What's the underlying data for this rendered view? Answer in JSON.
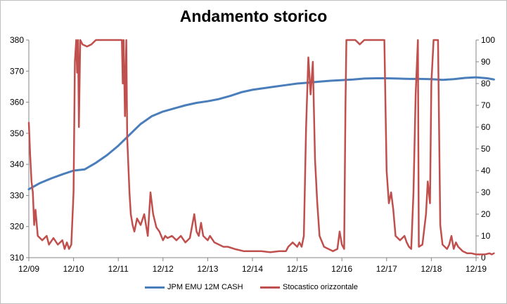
{
  "chart_data": {
    "type": "line",
    "title": "Andamento storico",
    "x_categories": [
      "12/09",
      "12/10",
      "12/11",
      "12/12",
      "12/13",
      "12/14",
      "12/15",
      "12/16",
      "12/17",
      "12/18",
      "12/19"
    ],
    "y_left": {
      "min": 310,
      "max": 380,
      "ticks": [
        310,
        320,
        330,
        340,
        350,
        360,
        370,
        380
      ]
    },
    "y_right": {
      "min": 0,
      "max": 100,
      "ticks": [
        0,
        10,
        20,
        30,
        40,
        50,
        60,
        70,
        80,
        90,
        100
      ]
    },
    "gridlines": false,
    "legend_position": "bottom",
    "series": [
      {
        "name": "JPM EMU 12M CASH",
        "axis": "left",
        "color": "#4a7ebb",
        "points": [
          [
            0.0,
            332.0
          ],
          [
            0.25,
            334.0
          ],
          [
            0.5,
            335.5
          ],
          [
            0.75,
            336.8
          ],
          [
            1.0,
            338.0
          ],
          [
            1.25,
            338.4
          ],
          [
            1.5,
            340.5
          ],
          [
            1.75,
            343.0
          ],
          [
            2.0,
            346.0
          ],
          [
            2.25,
            349.5
          ],
          [
            2.5,
            353.0
          ],
          [
            2.75,
            355.5
          ],
          [
            3.0,
            357.0
          ],
          [
            3.25,
            358.0
          ],
          [
            3.5,
            359.0
          ],
          [
            3.75,
            359.8
          ],
          [
            4.0,
            360.3
          ],
          [
            4.25,
            361.0
          ],
          [
            4.5,
            362.0
          ],
          [
            4.75,
            363.2
          ],
          [
            5.0,
            364.0
          ],
          [
            5.25,
            364.5
          ],
          [
            5.5,
            365.0
          ],
          [
            5.75,
            365.5
          ],
          [
            6.0,
            366.0
          ],
          [
            6.25,
            366.3
          ],
          [
            6.5,
            366.6
          ],
          [
            6.75,
            366.9
          ],
          [
            7.0,
            367.1
          ],
          [
            7.25,
            367.3
          ],
          [
            7.5,
            367.6
          ],
          [
            7.75,
            367.7
          ],
          [
            8.0,
            367.7
          ],
          [
            8.25,
            367.6
          ],
          [
            8.5,
            367.5
          ],
          [
            8.75,
            367.5
          ],
          [
            9.0,
            367.4
          ],
          [
            9.25,
            367.2
          ],
          [
            9.5,
            367.4
          ],
          [
            9.75,
            367.8
          ],
          [
            10.0,
            368.0
          ],
          [
            10.25,
            367.7
          ],
          [
            10.4,
            367.3
          ]
        ]
      },
      {
        "name": "Stocastico orizzontale",
        "axis": "right",
        "color": "#c0504d",
        "points": [
          [
            0.0,
            62
          ],
          [
            0.03,
            47
          ],
          [
            0.06,
            35
          ],
          [
            0.09,
            30
          ],
          [
            0.12,
            15
          ],
          [
            0.15,
            22
          ],
          [
            0.2,
            10
          ],
          [
            0.3,
            8
          ],
          [
            0.4,
            10
          ],
          [
            0.45,
            6
          ],
          [
            0.55,
            9
          ],
          [
            0.65,
            6
          ],
          [
            0.75,
            8
          ],
          [
            0.8,
            4
          ],
          [
            0.85,
            7
          ],
          [
            0.9,
            4
          ],
          [
            0.95,
            6
          ],
          [
            1.0,
            30
          ],
          [
            1.03,
            90
          ],
          [
            1.06,
            100
          ],
          [
            1.08,
            85
          ],
          [
            1.1,
            100
          ],
          [
            1.12,
            60
          ],
          [
            1.15,
            100
          ],
          [
            1.2,
            98
          ],
          [
            1.3,
            97
          ],
          [
            1.4,
            98
          ],
          [
            1.5,
            100
          ],
          [
            1.6,
            100
          ],
          [
            1.8,
            100
          ],
          [
            2.0,
            100
          ],
          [
            2.08,
            100
          ],
          [
            2.1,
            80
          ],
          [
            2.12,
            100
          ],
          [
            2.15,
            65
          ],
          [
            2.18,
            100
          ],
          [
            2.2,
            55
          ],
          [
            2.22,
            45
          ],
          [
            2.25,
            30
          ],
          [
            2.28,
            20
          ],
          [
            2.32,
            15
          ],
          [
            2.36,
            12
          ],
          [
            2.42,
            18
          ],
          [
            2.5,
            15
          ],
          [
            2.58,
            20
          ],
          [
            2.66,
            10
          ],
          [
            2.72,
            30
          ],
          [
            2.78,
            20
          ],
          [
            2.85,
            14
          ],
          [
            2.92,
            12
          ],
          [
            3.0,
            8
          ],
          [
            3.05,
            10
          ],
          [
            3.1,
            9
          ],
          [
            3.2,
            10
          ],
          [
            3.3,
            8
          ],
          [
            3.4,
            10
          ],
          [
            3.5,
            7
          ],
          [
            3.6,
            9
          ],
          [
            3.7,
            20
          ],
          [
            3.75,
            12
          ],
          [
            3.8,
            10
          ],
          [
            3.85,
            16
          ],
          [
            3.9,
            10
          ],
          [
            3.95,
            9
          ],
          [
            4.0,
            8
          ],
          [
            4.05,
            10
          ],
          [
            4.15,
            7
          ],
          [
            4.25,
            6
          ],
          [
            4.35,
            5
          ],
          [
            4.45,
            5
          ],
          [
            4.6,
            4
          ],
          [
            4.8,
            3
          ],
          [
            5.0,
            3
          ],
          [
            5.2,
            3
          ],
          [
            5.4,
            2.5
          ],
          [
            5.6,
            3
          ],
          [
            5.75,
            3
          ],
          [
            5.8,
            5
          ],
          [
            5.9,
            7
          ],
          [
            6.0,
            5
          ],
          [
            6.05,
            7
          ],
          [
            6.1,
            5
          ],
          [
            6.15,
            10
          ],
          [
            6.2,
            60
          ],
          [
            6.25,
            92
          ],
          [
            6.3,
            75
          ],
          [
            6.35,
            90
          ],
          [
            6.4,
            45
          ],
          [
            6.45,
            25
          ],
          [
            6.5,
            10
          ],
          [
            6.6,
            5
          ],
          [
            6.7,
            4
          ],
          [
            6.8,
            3
          ],
          [
            6.9,
            4
          ],
          [
            6.95,
            12
          ],
          [
            7.0,
            6
          ],
          [
            7.05,
            4
          ],
          [
            7.08,
            70
          ],
          [
            7.1,
            100
          ],
          [
            7.2,
            100
          ],
          [
            7.3,
            100
          ],
          [
            7.4,
            98
          ],
          [
            7.5,
            100
          ],
          [
            7.6,
            100
          ],
          [
            7.7,
            100
          ],
          [
            7.8,
            100
          ],
          [
            7.9,
            100
          ],
          [
            7.95,
            100
          ],
          [
            8.0,
            40
          ],
          [
            8.05,
            25
          ],
          [
            8.1,
            30
          ],
          [
            8.15,
            22
          ],
          [
            8.2,
            10
          ],
          [
            8.3,
            8
          ],
          [
            8.4,
            10
          ],
          [
            8.45,
            7
          ],
          [
            8.5,
            5
          ],
          [
            8.55,
            4
          ],
          [
            8.6,
            30
          ],
          [
            8.65,
            75
          ],
          [
            8.7,
            100
          ],
          [
            8.72,
            5
          ],
          [
            8.8,
            6
          ],
          [
            8.88,
            20
          ],
          [
            8.92,
            35
          ],
          [
            8.97,
            25
          ],
          [
            9.0,
            80
          ],
          [
            9.05,
            100
          ],
          [
            9.15,
            100
          ],
          [
            9.2,
            15
          ],
          [
            9.25,
            6
          ],
          [
            9.3,
            5
          ],
          [
            9.35,
            4
          ],
          [
            9.4,
            6
          ],
          [
            9.45,
            10
          ],
          [
            9.5,
            4
          ],
          [
            9.55,
            7
          ],
          [
            9.6,
            5
          ],
          [
            9.7,
            3
          ],
          [
            9.8,
            2
          ],
          [
            9.9,
            2
          ],
          [
            10.0,
            1.5
          ],
          [
            10.1,
            1.5
          ],
          [
            10.2,
            1.5
          ],
          [
            10.3,
            2
          ],
          [
            10.35,
            1.5
          ],
          [
            10.4,
            2
          ]
        ]
      }
    ]
  }
}
